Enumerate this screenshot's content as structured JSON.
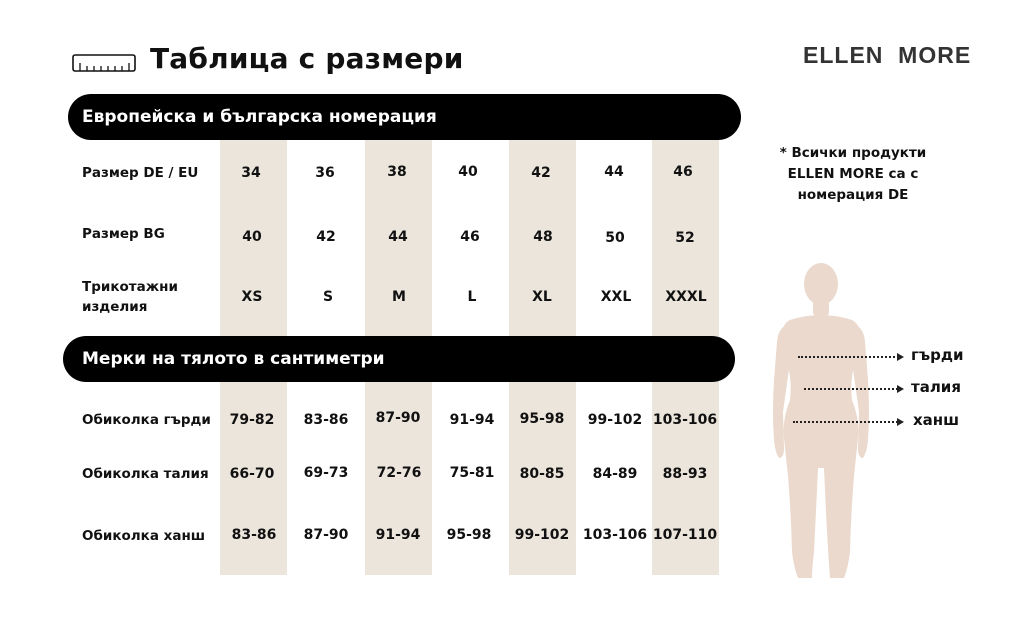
{
  "header": {
    "title": "Таблица с размери",
    "brand": "ELLEN  MORE",
    "ruler_icon": "ruler-icon"
  },
  "sections": [
    {
      "title": "Европейска и българска номерация",
      "rows": [
        {
          "label": "Размер DE / EU",
          "values": [
            "34",
            "36",
            "38",
            "40",
            "42",
            "44",
            "46"
          ]
        },
        {
          "label": "Размер BG",
          "values": [
            "40",
            "42",
            "44",
            "46",
            "48",
            "50",
            "52"
          ]
        },
        {
          "label": "Трикотажни изделия",
          "values": [
            "XS",
            "S",
            "M",
            "L",
            "XL",
            "XXL",
            "XXXL"
          ]
        }
      ]
    },
    {
      "title": "Мерки на тялото в сантиметри",
      "rows": [
        {
          "label": "Обиколка гърди",
          "values": [
            "79-82",
            "83-86",
            "87-90",
            "91-94",
            "95-98",
            "99-102",
            "103-106"
          ]
        },
        {
          "label": "Обиколка талия",
          "values": [
            "66-70",
            "69-73",
            "72-76",
            "75-81",
            "80-85",
            "84-89",
            "88-93"
          ]
        },
        {
          "label": "Обиколка ханш",
          "values": [
            "83-86",
            "87-90",
            "91-94",
            "95-98",
            "99-102",
            "103-106",
            "107-110"
          ]
        }
      ]
    }
  ],
  "note": "* Всички продукти ELLEN MORE са с номерация DE",
  "figure": {
    "icon": "body-silhouette-icon",
    "measurements": [
      "гърди",
      "талия",
      "ханш"
    ]
  },
  "colors": {
    "banner_bg": "#000000",
    "stripe": "#ebe5dc",
    "silhouette": "#ead9cc"
  }
}
